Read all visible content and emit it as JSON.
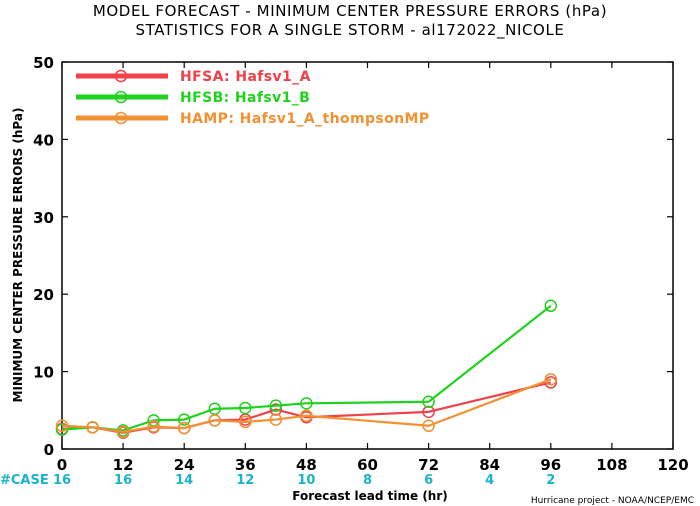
{
  "chart_data": {
    "type": "line",
    "title_line1": "MODEL FORECAST - MINIMUM CENTER PRESSURE ERRORS (hPa)",
    "title_line2": "STATISTICS FOR A SINGLE STORM - al172022_NICOLE",
    "xlabel": "Forecast lead time (hr)",
    "ylabel": "MINIMUM CENTER PRESSURE ERRORS (hPa)",
    "xlim": [
      0,
      120
    ],
    "ylim": [
      0,
      50
    ],
    "x_ticks": [
      0,
      12,
      24,
      36,
      48,
      60,
      72,
      84,
      96,
      108,
      120
    ],
    "y_ticks": [
      0,
      10,
      20,
      30,
      40,
      50
    ],
    "case_label": "#CASE",
    "case_counts": [
      {
        "x": 0,
        "n": "16"
      },
      {
        "x": 12,
        "n": "16"
      },
      {
        "x": 24,
        "n": "14"
      },
      {
        "x": 36,
        "n": "12"
      },
      {
        "x": 48,
        "n": "10"
      },
      {
        "x": 60,
        "n": "8"
      },
      {
        "x": 72,
        "n": "6"
      },
      {
        "x": 84,
        "n": "4"
      },
      {
        "x": 96,
        "n": "2"
      }
    ],
    "credit": "Hurricane project - NOAA/NCEP/EMC",
    "legend_position": "top-left",
    "series": [
      {
        "name": "HFSA: Hafsv1_A",
        "color": "#f0404a",
        "x": [
          0,
          6,
          12,
          18,
          24,
          30,
          36,
          42,
          48,
          72,
          96
        ],
        "y": [
          2.6,
          2.8,
          2.1,
          2.8,
          2.7,
          3.7,
          3.8,
          5.1,
          4.1,
          4.8,
          8.6
        ]
      },
      {
        "name": "HFSB: Hafsv1_B",
        "color": "#1ed21e",
        "x": [
          0,
          6,
          12,
          18,
          24,
          30,
          36,
          42,
          48,
          72,
          96
        ],
        "y": [
          2.5,
          2.8,
          2.4,
          3.7,
          3.8,
          5.2,
          5.3,
          5.6,
          5.9,
          6.1,
          18.5
        ]
      },
      {
        "name": "HAMP: Hafsv1_A_thompsonMP",
        "color": "#f29032",
        "x": [
          0,
          6,
          12,
          18,
          24,
          30,
          36,
          42,
          48,
          72,
          96
        ],
        "y": [
          3.0,
          2.8,
          2.2,
          2.9,
          2.7,
          3.7,
          3.5,
          3.8,
          4.3,
          3.0,
          9.0
        ]
      }
    ]
  }
}
